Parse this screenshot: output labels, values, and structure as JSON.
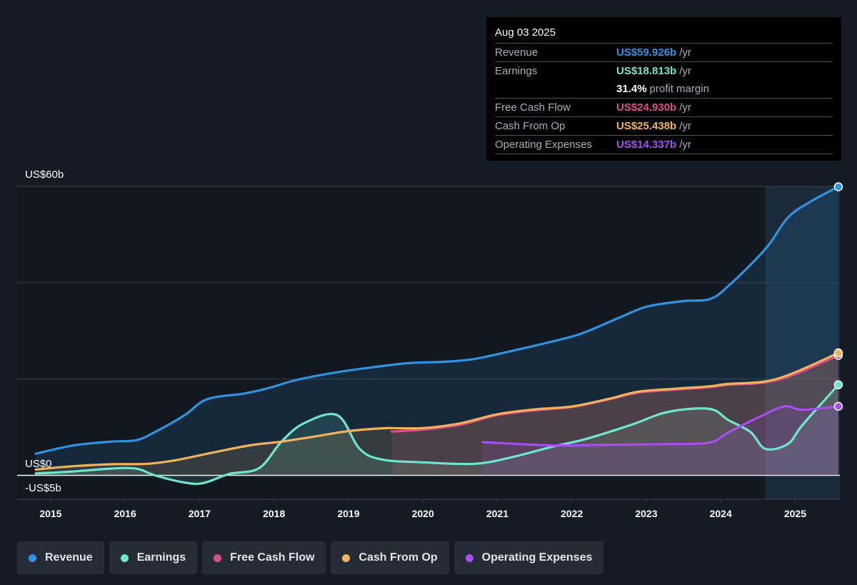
{
  "tooltip": {
    "date": "Aug 03 2025",
    "rows": [
      {
        "label": "Revenue",
        "value": "US$59.926b",
        "unit": "/yr",
        "color": "#2e93e0"
      },
      {
        "label": "Earnings",
        "value": "US$18.813b",
        "unit": "/yr",
        "color": "#6ee6cf"
      },
      {
        "label": "",
        "value": "31.4%",
        "unit": "profit margin",
        "color": "#ffffff"
      },
      {
        "label": "Free Cash Flow",
        "value": "US$24.930b",
        "unit": "/yr",
        "color": "#d94f87"
      },
      {
        "label": "Cash From Op",
        "value": "US$25.438b",
        "unit": "/yr",
        "color": "#f0b25a"
      },
      {
        "label": "Operating Expenses",
        "value": "US$14.337b",
        "unit": "/yr",
        "color": "#a64ef2"
      }
    ]
  },
  "legend": [
    {
      "label": "Revenue",
      "color": "#2e93e0"
    },
    {
      "label": "Earnings",
      "color": "#6ee6cf"
    },
    {
      "label": "Free Cash Flow",
      "color": "#d94f87"
    },
    {
      "label": "Cash From Op",
      "color": "#f0b25a"
    },
    {
      "label": "Operating Expenses",
      "color": "#a64ef2"
    }
  ],
  "chart_data": {
    "type": "area",
    "y_labels": {
      "top": "US$60b",
      "zero": "US$0",
      "bottom": "-US$5b"
    },
    "ylim": [
      -5,
      60
    ],
    "xlim": [
      2014.55,
      2025.6
    ],
    "x_ticks": [
      "2015",
      "2016",
      "2017",
      "2018",
      "2019",
      "2020",
      "2021",
      "2022",
      "2023",
      "2024",
      "2025"
    ],
    "grid": true,
    "series": [
      {
        "name": "Revenue",
        "color": "#2e93e0",
        "points": [
          [
            2014.8,
            4.5
          ],
          [
            2015.3,
            6.2
          ],
          [
            2015.8,
            7.0
          ],
          [
            2016.15,
            7.3
          ],
          [
            2016.4,
            9.0
          ],
          [
            2016.8,
            12.5
          ],
          [
            2017.1,
            15.8
          ],
          [
            2017.6,
            17.0
          ],
          [
            2017.9,
            18.0
          ],
          [
            2018.3,
            19.8
          ],
          [
            2018.8,
            21.3
          ],
          [
            2019.3,
            22.4
          ],
          [
            2019.8,
            23.3
          ],
          [
            2020.3,
            23.6
          ],
          [
            2020.7,
            24.2
          ],
          [
            2021.1,
            25.5
          ],
          [
            2021.6,
            27.3
          ],
          [
            2022.1,
            29.3
          ],
          [
            2022.6,
            32.5
          ],
          [
            2023.0,
            35.0
          ],
          [
            2023.5,
            36.2
          ],
          [
            2023.85,
            36.6
          ],
          [
            2024.1,
            39.3
          ],
          [
            2024.6,
            47.0
          ],
          [
            2024.9,
            53.5
          ],
          [
            2025.2,
            56.8
          ],
          [
            2025.58,
            59.926
          ]
        ]
      },
      {
        "name": "Earnings",
        "color": "#6ee6cf",
        "points": [
          [
            2014.8,
            0.4
          ],
          [
            2015.3,
            0.8
          ],
          [
            2015.8,
            1.4
          ],
          [
            2016.15,
            1.4
          ],
          [
            2016.4,
            0.0
          ],
          [
            2016.8,
            -1.5
          ],
          [
            2017.05,
            -1.6
          ],
          [
            2017.4,
            0.3
          ],
          [
            2017.8,
            1.5
          ],
          [
            2018.1,
            7.0
          ],
          [
            2018.4,
            10.8
          ],
          [
            2018.85,
            12.5
          ],
          [
            2019.15,
            5.5
          ],
          [
            2019.45,
            3.3
          ],
          [
            2020.0,
            2.7
          ],
          [
            2020.7,
            2.4
          ],
          [
            2021.2,
            3.8
          ],
          [
            2021.7,
            5.8
          ],
          [
            2022.2,
            7.6
          ],
          [
            2022.8,
            10.5
          ],
          [
            2023.3,
            13.2
          ],
          [
            2023.85,
            13.8
          ],
          [
            2024.1,
            11.5
          ],
          [
            2024.4,
            9.0
          ],
          [
            2024.6,
            5.5
          ],
          [
            2024.9,
            6.5
          ],
          [
            2025.1,
            10.5
          ],
          [
            2025.58,
            18.813
          ]
        ]
      },
      {
        "name": "Free Cash Flow",
        "color": "#d94f87",
        "points": [
          [
            2019.58,
            9.1
          ],
          [
            2020.0,
            9.5
          ],
          [
            2020.5,
            10.5
          ],
          [
            2021.0,
            12.5
          ],
          [
            2021.5,
            13.5
          ],
          [
            2022.0,
            14.2
          ],
          [
            2022.5,
            15.8
          ],
          [
            2022.9,
            17.2
          ],
          [
            2023.4,
            17.8
          ],
          [
            2023.85,
            18.3
          ],
          [
            2024.1,
            18.8
          ],
          [
            2024.6,
            19.3
          ],
          [
            2025.0,
            21.0
          ],
          [
            2025.58,
            24.93
          ]
        ]
      },
      {
        "name": "Cash From Op",
        "color": "#f0b25a",
        "points": [
          [
            2014.8,
            1.2
          ],
          [
            2015.3,
            1.9
          ],
          [
            2015.8,
            2.3
          ],
          [
            2016.3,
            2.4
          ],
          [
            2016.7,
            3.2
          ],
          [
            2017.2,
            4.8
          ],
          [
            2017.7,
            6.3
          ],
          [
            2018.1,
            7.0
          ],
          [
            2018.6,
            8.2
          ],
          [
            2019.0,
            9.2
          ],
          [
            2019.5,
            9.8
          ],
          [
            2020.0,
            9.8
          ],
          [
            2020.5,
            10.8
          ],
          [
            2021.0,
            12.7
          ],
          [
            2021.5,
            13.7
          ],
          [
            2022.0,
            14.3
          ],
          [
            2022.5,
            15.9
          ],
          [
            2022.9,
            17.4
          ],
          [
            2023.4,
            18.0
          ],
          [
            2023.85,
            18.5
          ],
          [
            2024.1,
            19.0
          ],
          [
            2024.6,
            19.5
          ],
          [
            2025.0,
            21.4
          ],
          [
            2025.58,
            25.438
          ]
        ]
      },
      {
        "name": "Operating Expenses",
        "color": "#a64ef2",
        "points": [
          [
            2020.8,
            6.9
          ],
          [
            2021.3,
            6.5
          ],
          [
            2021.8,
            6.2
          ],
          [
            2022.3,
            6.3
          ],
          [
            2022.8,
            6.4
          ],
          [
            2023.3,
            6.5
          ],
          [
            2023.85,
            6.8
          ],
          [
            2024.1,
            8.9
          ],
          [
            2024.5,
            12.0
          ],
          [
            2024.85,
            14.3
          ],
          [
            2025.1,
            13.6
          ],
          [
            2025.58,
            14.337
          ]
        ]
      }
    ]
  }
}
